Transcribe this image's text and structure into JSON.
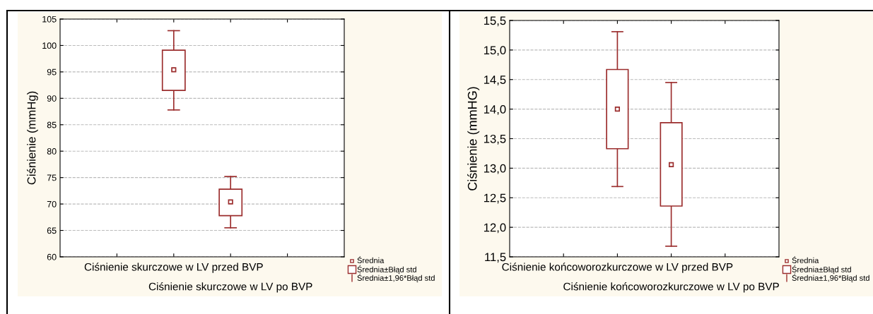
{
  "chart_data": [
    {
      "type": "box",
      "ylabel": "Ciśnienie (mmHg)",
      "categories": [
        "Ciśnienie skurczowe w LV przed BVP",
        "Ciśnienie skurczowe w LV po BVP"
      ],
      "color": "#9b2d2d",
      "boxes": [
        {
          "low": 87.8,
          "q1": 91.5,
          "median": 95.4,
          "q3": 99.1,
          "high": 102.8
        },
        {
          "low": 65.5,
          "q1": 67.8,
          "median": 70.4,
          "q3": 72.8,
          "high": 75.2
        }
      ],
      "ylim": [
        60,
        105
      ],
      "yticks": [
        60,
        65,
        70,
        75,
        80,
        85,
        90,
        95,
        100,
        105
      ],
      "grid": "y",
      "annotations": [
        "Średnia",
        "Średnia±Błąd std",
        "Średnia±1,96*Błąd std"
      ]
    },
    {
      "type": "box",
      "ylabel": "Ciśnienie (mmHG)",
      "categories": [
        "Ciśnienie końcoworozkurczowe w LV przed BVP",
        "Ciśnienie końcoworozkurczowe w LV po BVP"
      ],
      "color": "#9b2d2d",
      "boxes": [
        {
          "low": 12.69,
          "q1": 13.33,
          "median": 14.0,
          "q3": 14.67,
          "high": 15.31
        },
        {
          "low": 11.68,
          "q1": 12.36,
          "median": 13.06,
          "q3": 13.77,
          "high": 14.45
        }
      ],
      "ylim": [
        11.5,
        15.5
      ],
      "yticks": [
        {
          "value": 11.5,
          "label": "11,5"
        },
        {
          "value": 12.0,
          "label": "12,0"
        },
        {
          "value": 12.5,
          "label": "12,5"
        },
        {
          "value": 13.0,
          "label": "13,0"
        },
        {
          "value": 13.5,
          "label": "13,5"
        },
        {
          "value": 14.0,
          "label": "14,0"
        },
        {
          "value": 14.5,
          "label": "14,5"
        },
        {
          "value": 15.0,
          "label": "15,0"
        },
        {
          "value": 15.5,
          "label": "15,5"
        }
      ],
      "grid": "y",
      "annotations": [
        "Średnia",
        "Średnia±Błąd std",
        "Średnia±1,96*Błąd std"
      ]
    }
  ]
}
